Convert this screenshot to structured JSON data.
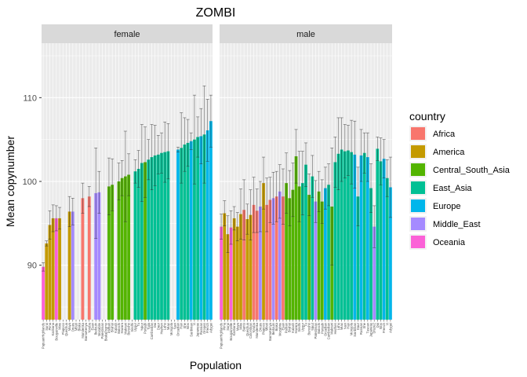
{
  "chart_data": {
    "type": "bar",
    "title": "ZOMBI",
    "xlabel": "Population",
    "ylabel": "Mean copynumber",
    "ylim": [
      83.5,
      116.5
    ],
    "yticks": [
      90,
      100,
      110
    ],
    "grid": true,
    "legend": {
      "title": "country",
      "position": "right",
      "entries": [
        {
          "name": "Africa",
          "color": "#F8766D"
        },
        {
          "name": "America",
          "color": "#C49A00"
        },
        {
          "name": "Central_South_Asia",
          "color": "#53B400"
        },
        {
          "name": "East_Asia",
          "color": "#00C094"
        },
        {
          "name": "Europe",
          "color": "#00B6EB"
        },
        {
          "name": "Middle_East",
          "color": "#A58AFF"
        },
        {
          "name": "Oceania",
          "color": "#FB61D7"
        }
      ]
    },
    "facets": [
      {
        "label": "female",
        "bars": [
          {
            "population": "PapuanHighlands",
            "country": "Oceania",
            "mean": 89.8,
            "err": 0.5
          },
          {
            "population": "Surui",
            "country": "America",
            "mean": 92.6,
            "err": 0.3
          },
          {
            "population": "Pima",
            "country": "America",
            "mean": 94.8,
            "err": 1.7
          },
          {
            "population": "Karitiana",
            "country": "America",
            "mean": 95.6,
            "err": 1.6
          },
          {
            "population": "Bougainville",
            "country": "Oceania",
            "mean": 95.6,
            "err": 1.5
          },
          {
            "population": "Mixe",
            "country": "America",
            "mean": 95.6,
            "err": 1.3
          },
          {
            "population": "Piapoco",
            "country": "America",
            "mean": 0,
            "err": 0
          },
          {
            "population": "Quechua",
            "country": "America",
            "mean": 0,
            "err": 0
          },
          {
            "population": "Maya",
            "country": "America",
            "mean": 96.4,
            "err": 1.8
          },
          {
            "population": "Druze",
            "country": "Middle_East",
            "mean": 96.4,
            "err": 1.6
          },
          {
            "population": "Mbuti",
            "country": "Africa",
            "mean": 0,
            "err": 0
          },
          {
            "population": "Biaka",
            "country": "Africa",
            "mean": 0,
            "err": 0
          },
          {
            "population": "Mandenka",
            "country": "Africa",
            "mean": 98.0,
            "err": 1.8
          },
          {
            "population": "BantuKenya",
            "country": "Africa",
            "mean": 0,
            "err": 0
          },
          {
            "population": "Yoruba",
            "country": "Africa",
            "mean": 98.2,
            "err": 1.2
          },
          {
            "population": "Esan",
            "country": "Africa",
            "mean": 0,
            "err": 0
          },
          {
            "population": "Bedouin",
            "country": "Middle_East",
            "mean": 98.6,
            "err": 5.4
          },
          {
            "population": "Mozabite",
            "country": "Middle_East",
            "mean": 98.7,
            "err": 2.5
          },
          {
            "population": "Palestinian",
            "country": "Middle_East",
            "mean": 0,
            "err": 0
          },
          {
            "population": "BiakaPygmy",
            "country": "Africa",
            "mean": 0,
            "err": 0
          },
          {
            "population": "Pathan",
            "country": "Central_South_Asia",
            "mean": 99.4,
            "err": 3.4
          },
          {
            "population": "Brahui",
            "country": "Central_South_Asia",
            "mean": 99.6,
            "err": 3.1
          },
          {
            "population": "Kalash",
            "country": "Central_South_Asia",
            "mean": 0,
            "err": 0
          },
          {
            "population": "Balochi",
            "country": "Central_South_Asia",
            "mean": 100.0,
            "err": 2.2
          },
          {
            "population": "Hazara",
            "country": "Central_South_Asia",
            "mean": 100.4,
            "err": 2.1
          },
          {
            "population": "Makrani",
            "country": "Central_South_Asia",
            "mean": 100.6,
            "err": 5.4
          },
          {
            "population": "Burusho",
            "country": "Central_South_Asia",
            "mean": 100.8,
            "err": 2.5
          },
          {
            "population": "Sindhi",
            "country": "Central_South_Asia",
            "mean": 0,
            "err": 0
          },
          {
            "population": "Uygur",
            "country": "East_Asia",
            "mean": 101.2,
            "err": 1.4
          },
          {
            "population": "Tu",
            "country": "East_Asia",
            "mean": 101.5,
            "err": 2.2
          },
          {
            "population": "Yakut",
            "country": "East_Asia",
            "mean": 102.2,
            "err": 4.6
          },
          {
            "population": "Punjabi",
            "country": "Central_South_Asia",
            "mean": 102.3,
            "err": 4.2
          },
          {
            "population": "Tujia",
            "country": "East_Asia",
            "mean": 102.6,
            "err": 2.4
          },
          {
            "population": "Cambodian",
            "country": "East_Asia",
            "mean": 102.9,
            "err": 3.9
          },
          {
            "population": "Dai",
            "country": "East_Asia",
            "mean": 103.1,
            "err": 3.6
          },
          {
            "population": "Daur",
            "country": "East_Asia",
            "mean": 103.2,
            "err": 2.3
          },
          {
            "population": "Hezhen",
            "country": "East_Asia",
            "mean": 103.4,
            "err": 2.4
          },
          {
            "population": "Lahu",
            "country": "East_Asia",
            "mean": 103.5,
            "err": 3.6
          },
          {
            "population": "Miao",
            "country": "East_Asia",
            "mean": 103.6,
            "err": 3.3
          },
          {
            "population": "Mongola",
            "country": "East_Asia",
            "mean": 0,
            "err": 0
          },
          {
            "population": "Naxi",
            "country": "East_Asia",
            "mean": 0,
            "err": 0
          },
          {
            "population": "Orcadian",
            "country": "Europe",
            "mean": 103.8,
            "err": 0.3
          },
          {
            "population": "Han",
            "country": "East_Asia",
            "mean": 104.0,
            "err": 4.2
          },
          {
            "population": "She",
            "country": "East_Asia",
            "mean": 104.4,
            "err": 3.2
          },
          {
            "population": "Xibo",
            "country": "East_Asia",
            "mean": 104.6,
            "err": 2.8
          },
          {
            "population": "Sardinian",
            "country": "Europe",
            "mean": 104.8,
            "err": 1.0
          },
          {
            "population": "Yi",
            "country": "East_Asia",
            "mean": 105.0,
            "err": 5.3
          },
          {
            "population": "Japanese",
            "country": "East_Asia",
            "mean": 105.3,
            "err": 2.4
          },
          {
            "population": "Russian",
            "country": "Europe",
            "mean": 105.4,
            "err": 3.3
          },
          {
            "population": "Oroqen",
            "country": "East_Asia",
            "mean": 105.6,
            "err": 5.8
          },
          {
            "population": "French",
            "country": "Europe",
            "mean": 106.1,
            "err": 3.7
          },
          {
            "population": "Adygei",
            "country": "Europe",
            "mean": 107.2,
            "err": 3.1
          }
        ]
      },
      {
        "label": "male",
        "bars": [
          {
            "population": "PapuanHighlands",
            "country": "Oceania",
            "mean": 94.6,
            "err": 1.5
          },
          {
            "population": "Pima",
            "country": "America",
            "mean": 96.2,
            "err": 1.5
          },
          {
            "population": "Surui",
            "country": "America",
            "mean": 93.7,
            "err": 2.2
          },
          {
            "population": "Bougainville",
            "country": "Oceania",
            "mean": 94.5,
            "err": 2.0
          },
          {
            "population": "Karitiana",
            "country": "America",
            "mean": 95.6,
            "err": 1.4
          },
          {
            "population": "Maya",
            "country": "America",
            "mean": 94.6,
            "err": 1.7
          },
          {
            "population": "Mixe",
            "country": "America",
            "mean": 96.1,
            "err": 3.0
          },
          {
            "population": "Bantu",
            "country": "Africa",
            "mean": 96.6,
            "err": 3.6
          },
          {
            "population": "Quechua",
            "country": "America",
            "mean": 95.5,
            "err": 1.8
          },
          {
            "population": "Colombian",
            "country": "America",
            "mean": 96.0,
            "err": 3.0
          },
          {
            "population": "Yoruba",
            "country": "Africa",
            "mean": 97.2,
            "err": 3.3
          },
          {
            "population": "Mandenka",
            "country": "Africa",
            "mean": 96.5,
            "err": 2.6
          },
          {
            "population": "Druze",
            "country": "Middle_East",
            "mean": 97.0,
            "err": 3.0
          },
          {
            "population": "Piapoco",
            "country": "America",
            "mean": 99.8,
            "err": 3.1
          },
          {
            "population": "Mbuti",
            "country": "Africa",
            "mean": 97.2,
            "err": 3.2
          },
          {
            "population": "BantuKenya",
            "country": "Africa",
            "mean": 97.8,
            "err": 2.7
          },
          {
            "population": "Bedouin",
            "country": "Middle_East",
            "mean": 98.0,
            "err": 3.1
          },
          {
            "population": "Biaka",
            "country": "Africa",
            "mean": 98.2,
            "err": 3.0
          },
          {
            "population": "Mozabite",
            "country": "Middle_East",
            "mean": 98.8,
            "err": 3.2
          },
          {
            "population": "Esan",
            "country": "Africa",
            "mean": 98.2,
            "err": 3.3
          },
          {
            "population": "Pathan",
            "country": "Central_South_Asia",
            "mean": 99.8,
            "err": 3.6
          },
          {
            "population": "Brahui",
            "country": "Central_South_Asia",
            "mean": 98.0,
            "err": 3.3
          },
          {
            "population": "Kalash",
            "country": "Central_South_Asia",
            "mean": 99.0,
            "err": 3.2
          },
          {
            "population": "Hazara",
            "country": "Central_South_Asia",
            "mean": 103.0,
            "err": 3.2
          },
          {
            "population": "Sindhi",
            "country": "Central_South_Asia",
            "mean": 99.4,
            "err": 4.2
          },
          {
            "population": "Uygur",
            "country": "East_Asia",
            "mean": 99.8,
            "err": 3.8
          },
          {
            "population": "Tu",
            "country": "East_Asia",
            "mean": 102.0,
            "err": 2.6
          },
          {
            "population": "Burusho",
            "country": "Central_South_Asia",
            "mean": 98.4,
            "err": 2.5
          },
          {
            "population": "Yakut",
            "country": "East_Asia",
            "mean": 100.6,
            "err": 2.5
          },
          {
            "population": "Palestinian",
            "country": "Middle_East",
            "mean": 97.6,
            "err": 2.5
          },
          {
            "population": "Balochi",
            "country": "Central_South_Asia",
            "mean": 98.8,
            "err": 2.4
          },
          {
            "population": "Punjabi",
            "country": "Central_South_Asia",
            "mean": 97.6,
            "err": 2.6
          },
          {
            "population": "Orcadian",
            "country": "Europe",
            "mean": 99.2,
            "err": 2.5
          },
          {
            "population": "Cambodian",
            "country": "East_Asia",
            "mean": 99.6,
            "err": 2.5
          },
          {
            "population": "Makrani",
            "country": "Central_South_Asia",
            "mean": 97.0,
            "err": 7.0
          },
          {
            "population": "Hezhen",
            "country": "East_Asia",
            "mean": 102.3,
            "err": 3.0
          },
          {
            "population": "Lahu",
            "country": "East_Asia",
            "mean": 103.3,
            "err": 4.3
          },
          {
            "population": "Miao",
            "country": "East_Asia",
            "mean": 103.8,
            "err": 3.8
          },
          {
            "population": "Naxi",
            "country": "East_Asia",
            "mean": 103.6,
            "err": 3.2
          },
          {
            "population": "Han",
            "country": "East_Asia",
            "mean": 103.7,
            "err": 3.0
          },
          {
            "population": "Mongola",
            "country": "East_Asia",
            "mean": 103.5,
            "err": 3.8
          },
          {
            "population": "Sardinian",
            "country": "Europe",
            "mean": 103.2,
            "err": 4.0
          },
          {
            "population": "Daur",
            "country": "East_Asia",
            "mean": 98.2,
            "err": 3.5
          },
          {
            "population": "Russian",
            "country": "Europe",
            "mean": 103.1,
            "err": 3.1
          },
          {
            "population": "She",
            "country": "East_Asia",
            "mean": 103.4,
            "err": 2.4
          },
          {
            "population": "Tuscan",
            "country": "Europe",
            "mean": 102.9,
            "err": 2.9
          },
          {
            "population": "Japanese",
            "country": "East_Asia",
            "mean": 99.2,
            "err": 2.9
          },
          {
            "population": "Druze2",
            "country": "Middle_East",
            "mean": 94.6,
            "err": 2.5
          },
          {
            "population": "Dai",
            "country": "East_Asia",
            "mean": 103.9,
            "err": 1.4
          },
          {
            "population": "Xibo",
            "country": "East_Asia",
            "mean": 102.4,
            "err": 2.8
          },
          {
            "population": "French",
            "country": "Europe",
            "mean": 102.7,
            "err": 2.3
          },
          {
            "population": "Yi",
            "country": "East_Asia",
            "mean": 100.4,
            "err": 2.2
          },
          {
            "population": "Adygei",
            "country": "Europe",
            "mean": 99.3,
            "err": 3.6
          }
        ]
      }
    ]
  }
}
